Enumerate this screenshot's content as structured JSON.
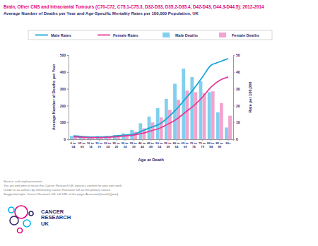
{
  "chart_data": {
    "type": "bar",
    "title": "Brain, Other CNS and Intracranial Tumours (C70-C72, C75.1-C75.3, D32-D33, D35.2-D35.4, D42-D43, D44.3-D44.5): 2012-2014",
    "subtitle": "Average Number of Deaths per Year and Age-Specific Mortality Rates per 100,000 Population, UK",
    "x_label": "Age at Death",
    "y_label": "Average Number of Deaths per Year",
    "y2_label": "Rate per 100,000",
    "categories": [
      "0 to 04",
      "05 to 09",
      "10 to 14",
      "15 to 19",
      "20 to 24",
      "25 to 29",
      "30 to 34",
      "35 to 39",
      "40 to 44",
      "45 to 49",
      "50 to 54",
      "55 to 59",
      "60 to 64",
      "65 to 69",
      "70 to 74",
      "75 to 79",
      "80 to 84",
      "85 to 89",
      "90+"
    ],
    "series": [
      {
        "name": "Male Rates",
        "type": "line",
        "axis": "y2",
        "color": "#1aa7d6",
        "values": [
          2,
          1.6,
          1.3,
          1.3,
          1.5,
          2,
          2.5,
          3,
          5,
          7,
          9,
          13,
          18,
          24,
          30,
          37,
          44,
          46,
          48
        ]
      },
      {
        "name": "Female Rates",
        "type": "line",
        "axis": "y2",
        "color": "#e23d98",
        "values": [
          1.5,
          1.2,
          1,
          1,
          1.2,
          1.5,
          2,
          2.5,
          3.5,
          5,
          6.5,
          9,
          12,
          16,
          20,
          25,
          31,
          35,
          37
        ]
      },
      {
        "name": "Male Deaths",
        "type": "bar",
        "color": "#7fd0ee",
        "values": [
          20,
          20,
          15,
          20,
          20,
          25,
          35,
          55,
          95,
          135,
          185,
          240,
          330,
          420,
          370,
          345,
          280,
          160,
          70
        ]
      },
      {
        "name": "Female Deaths",
        "type": "bar",
        "color": "#f2a3cf",
        "values": [
          15,
          15,
          15,
          15,
          15,
          20,
          25,
          45,
          65,
          100,
          130,
          175,
          235,
          290,
          280,
          275,
          285,
          215,
          140
        ]
      }
    ],
    "ylim": [
      0,
      500
    ],
    "yticks": [
      0,
      100,
      200,
      300,
      400,
      500
    ],
    "y2lim": [
      0,
      50
    ],
    "y2ticks": [
      0,
      10,
      20,
      30,
      40,
      50
    ],
    "grid": false,
    "legend": "top",
    "source_notes": [
      "Source: cruk.org/cancerstats",
      "You are welcome to reuse this Cancer Research UK statistics content for your own work.",
      "Credit us as authors by referencing Cancer Research UK as the primary source.",
      "Suggested style: Cancer Research UK, full URL of the page, Accessed [month] [year]."
    ],
    "logo_text": "CANCER RESEARCH UK"
  }
}
